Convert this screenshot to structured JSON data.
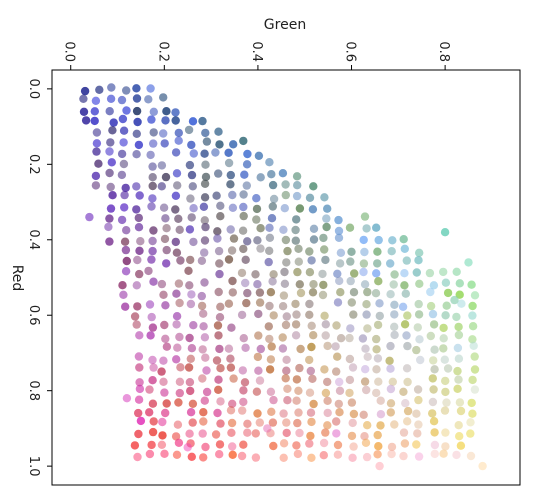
{
  "chart_data": {
    "type": "scatter",
    "xlabel": "Green",
    "ylabel": "Red",
    "xlim": [
      -0.04,
      0.96
    ],
    "ylim": [
      1.05,
      -0.05
    ],
    "x_axis_position": "top",
    "y_axis_inverted": true,
    "x_ticks": [
      "0.0",
      "0.2",
      "0.4",
      "0.6",
      "0.8"
    ],
    "y_ticks": [
      "0.0",
      "0.2",
      "0.4",
      "0.6",
      "0.8",
      "1.0"
    ],
    "tick_label_rotation_deg": 90,
    "grid": false,
    "legend": "none",
    "color_encoding": "each point is colored by an RGB value: red = y value, green = x value, blue varies",
    "sample_points": [
      {
        "x": 0.0,
        "y": 0.01,
        "color": "#2a2a2a"
      },
      {
        "x": 0.16,
        "y": 0.03,
        "color": "#1e3a52"
      },
      {
        "x": 0.35,
        "y": 0.15,
        "color": "#4a6a86"
      },
      {
        "x": 0.45,
        "y": 0.3,
        "color": "#5a7aa8"
      },
      {
        "x": 0.8,
        "y": 0.38,
        "color": "#40c4c8"
      },
      {
        "x": 0.85,
        "y": 0.46,
        "color": "#40c4c8"
      },
      {
        "x": 0.7,
        "y": 0.47,
        "color": "#9fd4d4"
      },
      {
        "x": 0.4,
        "y": 0.55,
        "color": "#6a5060"
      },
      {
        "x": 0.15,
        "y": 0.75,
        "color": "#c02c30"
      },
      {
        "x": 0.16,
        "y": 0.87,
        "color": "#d83a40"
      },
      {
        "x": 0.6,
        "y": 0.95,
        "color": "#f09aa6"
      },
      {
        "x": 0.88,
        "y": 0.98,
        "color": "#f8d8dc"
      }
    ]
  }
}
